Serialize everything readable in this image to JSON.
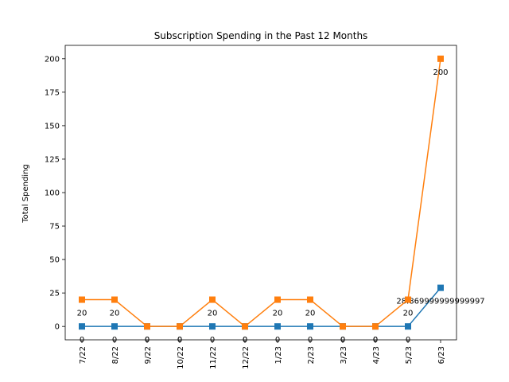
{
  "chart_data": {
    "type": "line",
    "title": "Subscription Spending in the Past 12 Months",
    "xlabel": "",
    "ylabel": "Total Spending",
    "categories": [
      "7/22",
      "8/22",
      "9/22",
      "10/22",
      "11/22",
      "12/22",
      "1/23",
      "2/23",
      "3/23",
      "4/23",
      "5/23",
      "6/23"
    ],
    "series": [
      {
        "color": "#1f77b4",
        "marker": "square",
        "values": [
          0,
          0,
          0,
          0,
          0,
          0,
          0,
          0,
          0,
          0,
          0,
          28.869999999999997
        ],
        "labels": [
          "0",
          "0",
          "0",
          "0",
          "0",
          "0",
          "0",
          "0",
          "0",
          "0",
          "0",
          "28.869999999999997"
        ]
      },
      {
        "color": "#ff7f0e",
        "marker": "square",
        "values": [
          20,
          20,
          0,
          0,
          20,
          0,
          20,
          20,
          0,
          0,
          20,
          200
        ],
        "labels": [
          "20",
          "20",
          "0",
          "0",
          "20",
          "0",
          "20",
          "20",
          "0",
          "0",
          "20",
          "200"
        ]
      }
    ],
    "ylim": [
      -10,
      210
    ],
    "yticks": [
      0,
      25,
      50,
      75,
      100,
      125,
      150,
      175,
      200
    ],
    "grid": false,
    "legend": "none"
  }
}
